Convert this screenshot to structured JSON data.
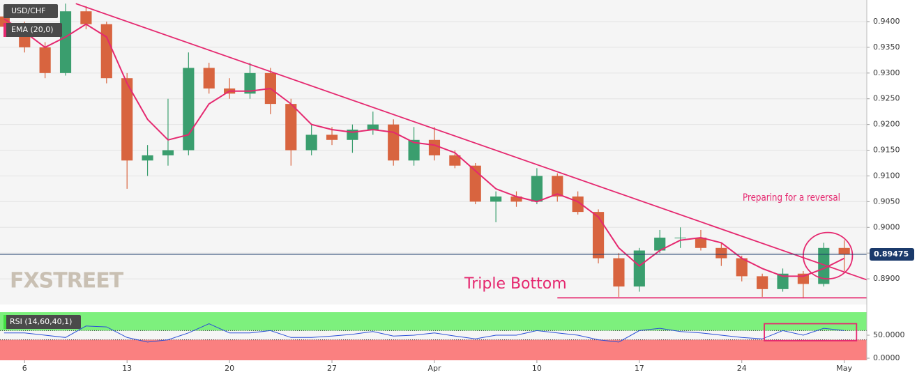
{
  "chart_data": [
    {
      "type": "candlestick",
      "title": "USD/CHF",
      "x": [
        -1,
        0,
        1,
        2,
        3,
        4,
        5,
        6,
        7,
        8,
        9,
        10,
        11,
        12,
        13,
        14,
        15,
        16,
        17,
        18,
        19,
        20,
        21,
        22,
        23,
        24,
        25,
        26,
        27,
        28,
        29,
        30,
        31,
        32,
        33,
        34,
        35,
        36,
        37,
        38,
        39,
        40
      ],
      "open": [
        0.941,
        0.939,
        0.935,
        0.93,
        0.942,
        0.9395,
        0.929,
        0.913,
        0.914,
        0.915,
        0.931,
        0.927,
        0.926,
        0.93,
        0.924,
        0.915,
        0.918,
        0.917,
        0.919,
        0.92,
        0.913,
        0.917,
        0.914,
        0.912,
        0.905,
        0.906,
        0.905,
        0.91,
        0.906,
        0.903,
        0.894,
        0.8885,
        0.8955,
        0.898,
        0.898,
        0.896,
        0.894,
        0.8905,
        0.888,
        0.891,
        0.889,
        0.896
      ],
      "high": [
        0.9425,
        0.94,
        0.936,
        0.9435,
        0.943,
        0.94,
        0.93,
        0.916,
        0.925,
        0.934,
        0.932,
        0.929,
        0.932,
        0.931,
        0.925,
        0.92,
        0.9195,
        0.92,
        0.9225,
        0.921,
        0.9195,
        0.9195,
        0.915,
        0.9125,
        0.907,
        0.907,
        0.9115,
        0.9105,
        0.907,
        0.9035,
        0.895,
        0.896,
        0.8995,
        0.9,
        0.8995,
        0.897,
        0.8945,
        0.891,
        0.892,
        0.8915,
        0.897,
        0.8975
      ],
      "low": [
        0.9385,
        0.934,
        0.929,
        0.9295,
        0.9385,
        0.928,
        0.9075,
        0.91,
        0.912,
        0.914,
        0.926,
        0.925,
        0.925,
        0.922,
        0.912,
        0.914,
        0.916,
        0.9145,
        0.918,
        0.912,
        0.912,
        0.913,
        0.9115,
        0.9045,
        0.901,
        0.904,
        0.9045,
        0.905,
        0.9025,
        0.893,
        0.8865,
        0.8875,
        0.895,
        0.896,
        0.8955,
        0.8925,
        0.8895,
        0.8865,
        0.8875,
        0.8862,
        0.8885,
        0.8915
      ],
      "close": [
        0.939,
        0.935,
        0.93,
        0.942,
        0.9395,
        0.929,
        0.913,
        0.914,
        0.915,
        0.931,
        0.927,
        0.926,
        0.93,
        0.924,
        0.915,
        0.918,
        0.917,
        0.919,
        0.92,
        0.913,
        0.917,
        0.914,
        0.912,
        0.905,
        0.906,
        0.905,
        0.91,
        0.906,
        0.903,
        0.894,
        0.8885,
        0.8955,
        0.898,
        0.898,
        0.896,
        0.894,
        0.8905,
        0.888,
        0.891,
        0.889,
        0.896,
        0.89475
      ],
      "up_color": "#3a9e6e",
      "down_color": "#d8643f",
      "series": [
        {
          "name": "EMA (20,0)",
          "color": "#e5286f",
          "values": [
            0.9405,
            0.938,
            0.935,
            0.937,
            0.9395,
            0.937,
            0.928,
            0.921,
            0.917,
            0.918,
            0.924,
            0.9265,
            0.9265,
            0.927,
            0.924,
            0.92,
            0.919,
            0.9185,
            0.919,
            0.9185,
            0.9165,
            0.916,
            0.9145,
            0.911,
            0.9075,
            0.906,
            0.905,
            0.9065,
            0.905,
            0.902,
            0.896,
            0.8925,
            0.8955,
            0.8975,
            0.898,
            0.897,
            0.894,
            0.892,
            0.8905,
            0.8905,
            0.892,
            0.894
          ]
        }
      ],
      "last_price": 0.89475,
      "xlim": [
        -1.2,
        41.1
      ],
      "ylim": [
        0.885,
        0.9442
      ],
      "yticks": [
        {
          "value": 0.89,
          "label": "0.8900"
        },
        {
          "value": 0.895,
          "label": "0.8950"
        },
        {
          "value": 0.9,
          "label": "0.9000"
        },
        {
          "value": 0.905,
          "label": "0.9050"
        },
        {
          "value": 0.91,
          "label": "0.9100"
        },
        {
          "value": 0.915,
          "label": "0.9150"
        },
        {
          "value": 0.92,
          "label": "0.9200"
        },
        {
          "value": 0.925,
          "label": "0.9250"
        },
        {
          "value": 0.93,
          "label": "0.9300"
        },
        {
          "value": 0.935,
          "label": "0.9350"
        },
        {
          "value": 0.94,
          "label": "0.9400"
        }
      ],
      "grid": true,
      "trendline": {
        "x": [
          2.5,
          41.1
        ],
        "y": [
          0.9435,
          0.8898
        ]
      },
      "support": {
        "x": [
          26,
          41.1
        ],
        "y": 0.8863
      },
      "circle": {
        "x": 39.2,
        "y": 0.8945,
        "rx": 1.2,
        "ry": 0.0045
      },
      "annotations": [
        "Preparing for a reversal",
        "Triple Bottom"
      ],
      "logo": "FXSTREET"
    },
    {
      "type": "line",
      "title": "RSI (14,60,40,1)",
      "x": [
        -1,
        0,
        1,
        2,
        3,
        4,
        5,
        6,
        7,
        8,
        9,
        10,
        11,
        12,
        13,
        14,
        15,
        16,
        17,
        18,
        19,
        20,
        21,
        22,
        23,
        24,
        25,
        26,
        27,
        28,
        29,
        30,
        31,
        32,
        33,
        34,
        35,
        36,
        37,
        38,
        39,
        40
      ],
      "series": [
        {
          "name": "RSI",
          "color": "#2a4fd6",
          "values": [
            55,
            55,
            50,
            45,
            70,
            68,
            45,
            35,
            40,
            55,
            75,
            55,
            55,
            60,
            45,
            45,
            48,
            52,
            58,
            48,
            50,
            55,
            48,
            42,
            50,
            50,
            60,
            55,
            50,
            40,
            35,
            60,
            65,
            58,
            55,
            50,
            45,
            42,
            60,
            50,
            65,
            60
          ]
        }
      ],
      "overbought": 60,
      "oversold": 40,
      "xlim": [
        -1.2,
        41.1
      ],
      "ylim": [
        -4.5,
        100
      ],
      "yticks": [
        {
          "value": 0,
          "label": "0.0000"
        },
        {
          "value": 50,
          "label": "50.0000"
        }
      ],
      "xticks": [
        {
          "value": 0,
          "label": "6"
        },
        {
          "value": 5,
          "label": "13"
        },
        {
          "value": 10,
          "label": "20"
        },
        {
          "value": 15,
          "label": "27"
        },
        {
          "value": 20,
          "label": "Apr"
        },
        {
          "value": 25,
          "label": "10"
        },
        {
          "value": 30,
          "label": "17"
        },
        {
          "value": 35,
          "label": "24"
        },
        {
          "value": 40,
          "label": "May"
        }
      ],
      "highlight": {
        "x": [
          36.1,
          40.6
        ],
        "y": [
          38,
          75
        ]
      }
    }
  ]
}
